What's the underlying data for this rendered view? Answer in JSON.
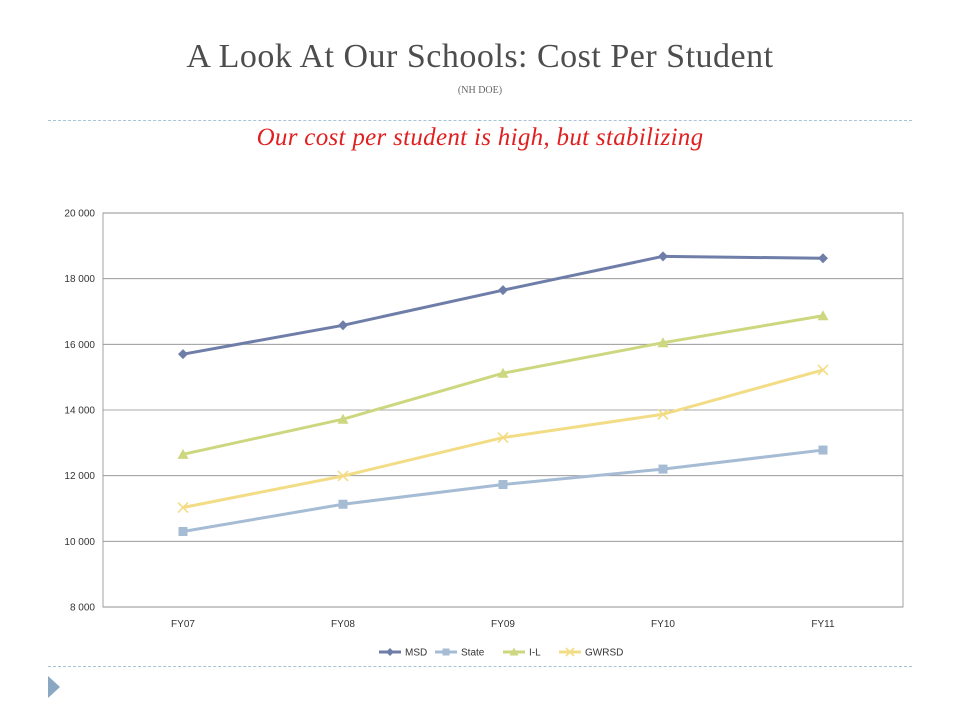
{
  "slide": {
    "title": "A Look At Our Schools: Cost Per Student",
    "source": "(NH DOE)",
    "subtitle": "Our cost per student is high, but stabilizing"
  },
  "chart_data": {
    "type": "line",
    "categories": [
      "FY07",
      "FY08",
      "FY09",
      "FY10",
      "FY11"
    ],
    "ylim": [
      8000,
      20000
    ],
    "yticks": [
      8000,
      10000,
      12000,
      14000,
      16000,
      18000,
      20000
    ],
    "ytick_labels": [
      "8 000",
      "10 000",
      "12 000",
      "14 000",
      "16 000",
      "18 000",
      "20 000"
    ],
    "grid": true,
    "legend": "bottom",
    "series": [
      {
        "name": "MSD",
        "values": [
          15700,
          16580,
          17650,
          18680,
          18620
        ],
        "color": "#6f7ea8",
        "marker": "diamond"
      },
      {
        "name": "State",
        "values": [
          10300,
          11130,
          11730,
          12200,
          12780
        ],
        "color": "#a6bcd4",
        "marker": "square"
      },
      {
        "name": "I-L",
        "values": [
          12650,
          13720,
          15120,
          16050,
          16870
        ],
        "color": "#cdd77f",
        "marker": "triangle"
      },
      {
        "name": "GWRSD",
        "values": [
          11030,
          11990,
          13160,
          13870,
          15220
        ],
        "color": "#f3dc86",
        "marker": "x"
      }
    ]
  }
}
